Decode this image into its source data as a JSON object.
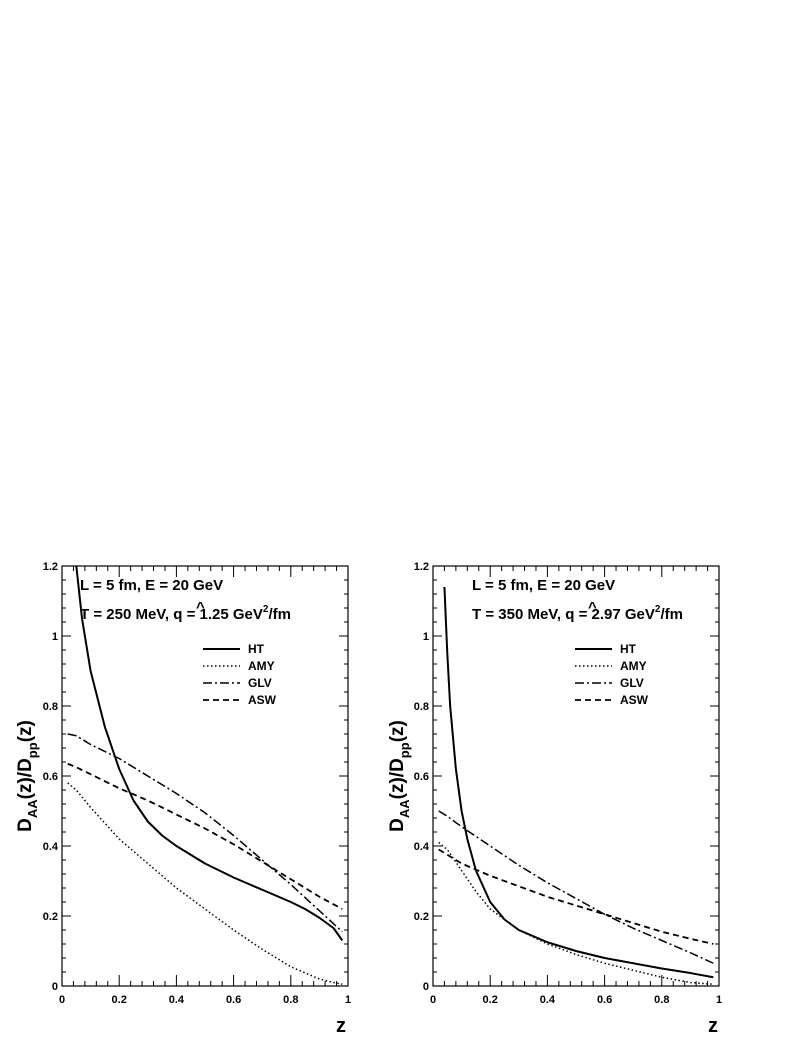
{
  "chart_data": [
    {
      "type": "line",
      "xlabel": "z",
      "ylabel": {
        "main": "D",
        "sub1": "AA",
        "mid": "(z)/D",
        "sub2": "pp",
        "end": "(z)"
      },
      "xlim": [
        0,
        1
      ],
      "ylim": [
        0,
        1.2
      ],
      "x_ticks": [
        "0",
        "0.2",
        "0.4",
        "0.6",
        "0.8",
        "1"
      ],
      "y_ticks": [
        "0",
        "0.2",
        "0.4",
        "0.6",
        "0.8",
        "1",
        "1.2"
      ],
      "annotations": {
        "line1": "L = 5 fm, E = 20 GeV",
        "line2_prefix": "T = 250 MeV, ",
        "qhat_symbol": "q",
        "qhat_hat": "^",
        "line2_value": " = 1.25 GeV",
        "line2_sup": "2",
        "line2_suffix": "/fm"
      },
      "legend_position": "top-right",
      "series": [
        {
          "name": "HT",
          "dash": "solid",
          "x": [
            0.05,
            0.07,
            0.1,
            0.15,
            0.2,
            0.25,
            0.3,
            0.35,
            0.4,
            0.5,
            0.6,
            0.7,
            0.8,
            0.85,
            0.9,
            0.95,
            0.98
          ],
          "y": [
            1.2,
            1.05,
            0.9,
            0.74,
            0.62,
            0.53,
            0.47,
            0.43,
            0.4,
            0.35,
            0.31,
            0.275,
            0.24,
            0.22,
            0.195,
            0.165,
            0.13
          ]
        },
        {
          "name": "AMY",
          "dash": "dotted",
          "x": [
            0.02,
            0.05,
            0.1,
            0.2,
            0.3,
            0.4,
            0.5,
            0.6,
            0.7,
            0.8,
            0.9,
            0.95,
            0.98
          ],
          "y": [
            0.58,
            0.56,
            0.51,
            0.42,
            0.35,
            0.28,
            0.22,
            0.16,
            0.105,
            0.055,
            0.02,
            0.01,
            0.005
          ]
        },
        {
          "name": "GLV",
          "dash": "dashdot",
          "x": [
            0.02,
            0.05,
            0.1,
            0.2,
            0.3,
            0.4,
            0.5,
            0.6,
            0.7,
            0.8,
            0.9,
            0.98
          ],
          "y": [
            0.72,
            0.715,
            0.69,
            0.65,
            0.6,
            0.55,
            0.495,
            0.43,
            0.36,
            0.29,
            0.215,
            0.155
          ]
        },
        {
          "name": "ASW",
          "dash": "dashed",
          "x": [
            0.02,
            0.05,
            0.1,
            0.2,
            0.3,
            0.4,
            0.5,
            0.6,
            0.7,
            0.8,
            0.9,
            0.98
          ],
          "y": [
            0.635,
            0.625,
            0.605,
            0.565,
            0.53,
            0.49,
            0.45,
            0.405,
            0.355,
            0.305,
            0.255,
            0.22
          ]
        }
      ]
    },
    {
      "type": "line",
      "xlabel": "z",
      "ylabel": {
        "main": "D",
        "sub1": "AA",
        "mid": "(z)/D",
        "sub2": "pp",
        "end": "(z)"
      },
      "xlim": [
        0,
        1
      ],
      "ylim": [
        0,
        1.2
      ],
      "x_ticks": [
        "0",
        "0.2",
        "0.4",
        "0.6",
        "0.8",
        "1"
      ],
      "y_ticks": [
        "0",
        "0.2",
        "0.4",
        "0.6",
        "0.8",
        "1",
        "1.2"
      ],
      "annotations": {
        "line1": "L = 5 fm, E = 20 GeV",
        "line2_prefix": "T = 350 MeV, ",
        "qhat_symbol": "q",
        "qhat_hat": "^",
        "line2_value": " = 2.97 GeV",
        "line2_sup": "2",
        "line2_suffix": "/fm"
      },
      "legend_position": "top-right",
      "series": [
        {
          "name": "HT",
          "dash": "solid",
          "x": [
            0.04,
            0.05,
            0.06,
            0.08,
            0.1,
            0.12,
            0.15,
            0.2,
            0.25,
            0.3,
            0.4,
            0.5,
            0.6,
            0.7,
            0.8,
            0.9,
            0.98
          ],
          "y": [
            1.14,
            0.95,
            0.8,
            0.62,
            0.5,
            0.42,
            0.33,
            0.24,
            0.19,
            0.16,
            0.125,
            0.1,
            0.08,
            0.065,
            0.05,
            0.037,
            0.025
          ]
        },
        {
          "name": "AMY",
          "dash": "dotted",
          "x": [
            0.02,
            0.05,
            0.1,
            0.15,
            0.2,
            0.3,
            0.4,
            0.5,
            0.6,
            0.7,
            0.8,
            0.9,
            0.98
          ],
          "y": [
            0.41,
            0.39,
            0.33,
            0.27,
            0.22,
            0.16,
            0.12,
            0.09,
            0.065,
            0.045,
            0.025,
            0.01,
            0.005
          ]
        },
        {
          "name": "GLV",
          "dash": "dashdot",
          "x": [
            0.02,
            0.05,
            0.1,
            0.2,
            0.3,
            0.4,
            0.5,
            0.6,
            0.7,
            0.8,
            0.9,
            0.98
          ],
          "y": [
            0.5,
            0.485,
            0.455,
            0.4,
            0.345,
            0.295,
            0.25,
            0.205,
            0.165,
            0.13,
            0.095,
            0.065
          ]
        },
        {
          "name": "ASW",
          "dash": "dashed",
          "x": [
            0.02,
            0.05,
            0.1,
            0.2,
            0.3,
            0.4,
            0.5,
            0.6,
            0.7,
            0.8,
            0.9,
            0.98
          ],
          "y": [
            0.39,
            0.375,
            0.35,
            0.315,
            0.285,
            0.255,
            0.23,
            0.205,
            0.18,
            0.155,
            0.135,
            0.12
          ]
        }
      ]
    }
  ]
}
